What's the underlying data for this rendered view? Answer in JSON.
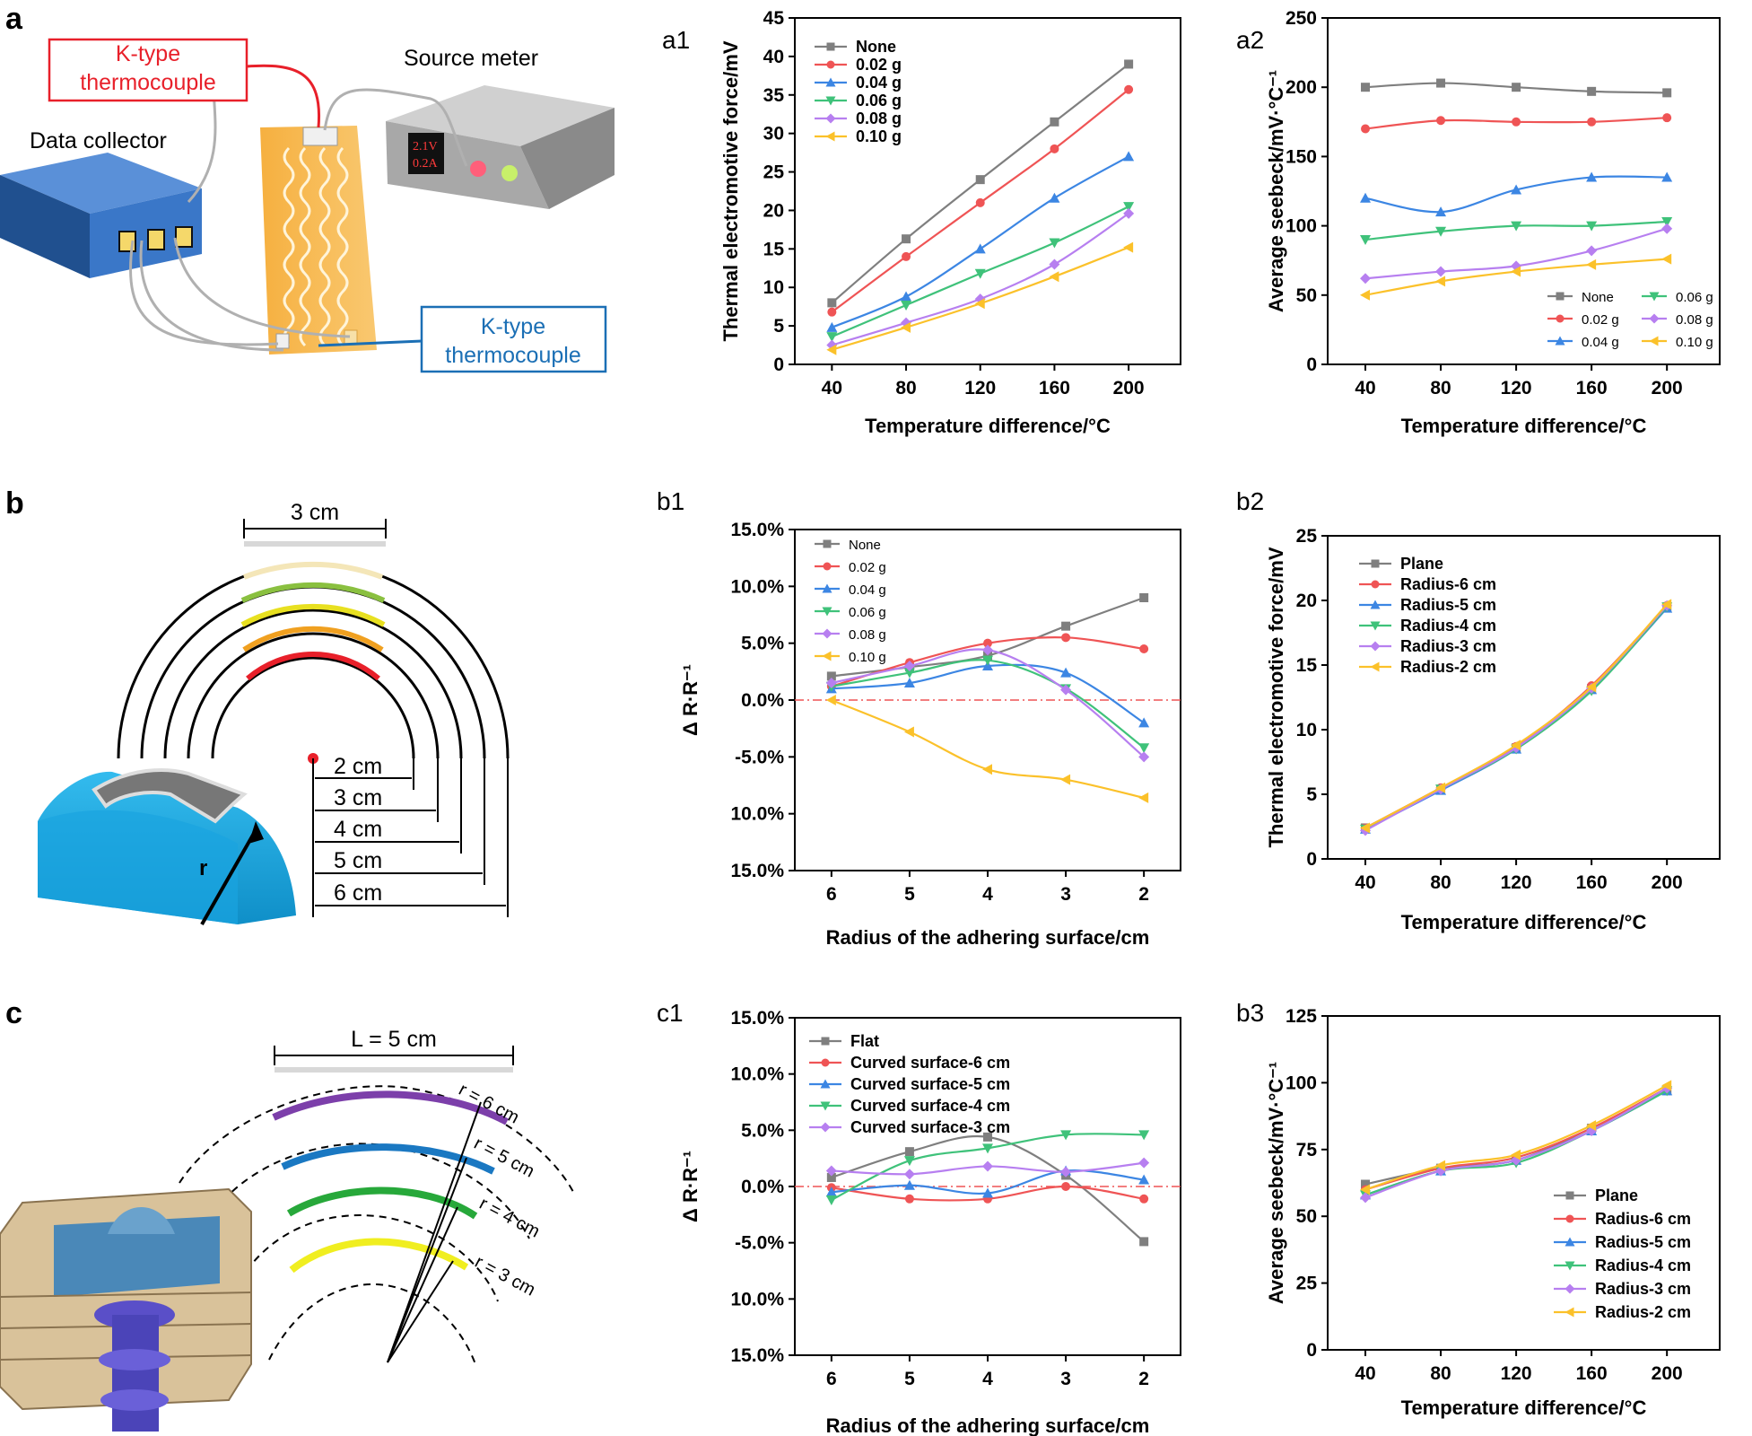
{
  "panel_labels": {
    "a": "a",
    "b": "b",
    "c": "c"
  },
  "schematic_a": {
    "thermocouple_top": [
      "K-type",
      "thermocouple"
    ],
    "source_meter": "Source meter",
    "data_collector": "Data collector",
    "thermocouple_bottom": [
      "K-type",
      "thermocouple"
    ],
    "display_voltage": "2.1V",
    "display_current": "0.2A"
  },
  "schematic_b": {
    "width_label": "3 cm",
    "r_label": "r",
    "radii": [
      "2 cm",
      "3 cm",
      "4 cm",
      "5 cm",
      "6 cm"
    ]
  },
  "schematic_c": {
    "length_label": "L = 5 cm",
    "radii": [
      "r = 6 cm",
      "r = 5 cm",
      "r = 4 cm",
      "r = 3 cm"
    ]
  },
  "colors": {
    "none": "#7f7f7f",
    "g002": "#ef5455",
    "g004": "#3c86e3",
    "g006": "#3fc27a",
    "g008": "#b77ff0",
    "g010": "#fbc12a",
    "refline": "#ef5455"
  },
  "chart_data": [
    {
      "id": "a1",
      "label": "a1",
      "type": "line",
      "xlabel": "Temperature difference/°C",
      "ylabel": "Thermal electromotive force/mV",
      "x": [
        40,
        80,
        120,
        160,
        200
      ],
      "xlim": [
        20,
        228
      ],
      "ylim": [
        0,
        45
      ],
      "yticks": [
        "0",
        "5",
        "10",
        "15",
        "20",
        "25",
        "30",
        "35",
        "40",
        "45"
      ],
      "series": [
        {
          "name": "None",
          "color": "#7f7f7f",
          "marker": "square",
          "values": [
            8.0,
            16.3,
            24.0,
            31.5,
            39.0
          ]
        },
        {
          "name": "0.02 g",
          "color": "#ef5455",
          "marker": "circle",
          "values": [
            6.8,
            14.0,
            21.0,
            28.0,
            35.7
          ]
        },
        {
          "name": "0.04 g",
          "color": "#3c86e3",
          "marker": "triangle-up",
          "values": [
            4.8,
            8.8,
            15.0,
            21.6,
            27.0
          ]
        },
        {
          "name": "0.06 g",
          "color": "#3fc27a",
          "marker": "triangle-down",
          "values": [
            3.6,
            7.7,
            11.8,
            15.8,
            20.5
          ]
        },
        {
          "name": "0.08 g",
          "color": "#b77ff0",
          "marker": "diamond",
          "values": [
            2.5,
            5.4,
            8.5,
            13.0,
            19.6
          ]
        },
        {
          "name": "0.10 g",
          "color": "#fbc12a",
          "marker": "left-triangle",
          "values": [
            1.9,
            4.8,
            7.9,
            11.4,
            15.2
          ]
        }
      ]
    },
    {
      "id": "a2",
      "label": "a2",
      "type": "line",
      "xlabel": "Temperature difference/°C",
      "ylabel": "Average seebeck/mV·°C⁻¹",
      "x": [
        40,
        80,
        120,
        160,
        200
      ],
      "xlim": [
        20,
        228
      ],
      "ylim": [
        0,
        250
      ],
      "yticks": [
        "0",
        "50",
        "100",
        "150",
        "200",
        "250"
      ],
      "series": [
        {
          "name": "None",
          "color": "#7f7f7f",
          "marker": "square",
          "values": [
            200,
            203,
            200,
            197,
            196
          ]
        },
        {
          "name": "0.02 g",
          "color": "#ef5455",
          "marker": "circle",
          "values": [
            170,
            176,
            175,
            175,
            178
          ]
        },
        {
          "name": "0.04 g",
          "color": "#3c86e3",
          "marker": "triangle-up",
          "values": [
            120,
            110,
            126,
            135,
            135
          ]
        },
        {
          "name": "0.06 g",
          "color": "#3fc27a",
          "marker": "triangle-down",
          "values": [
            90,
            96,
            100,
            100,
            103
          ]
        },
        {
          "name": "0.08 g",
          "color": "#b77ff0",
          "marker": "diamond",
          "values": [
            62,
            67,
            71,
            82,
            98
          ]
        },
        {
          "name": "0.10 g",
          "color": "#fbc12a",
          "marker": "left-triangle",
          "values": [
            50,
            60,
            67,
            72,
            76
          ]
        }
      ]
    },
    {
      "id": "b1",
      "label": "b1",
      "type": "line",
      "xlabel": "Radius of the adhering surface/cm",
      "ylabel": "Δ R·R⁻¹",
      "categories": [
        "6",
        "5",
        "4",
        "3",
        "2"
      ],
      "ylim": [
        -15,
        15
      ],
      "yticks": [
        "15.0%",
        "10.0%",
        "5.0%",
        "0.0%",
        "-5.0%",
        "10.0%",
        "15.0%"
      ],
      "series": [
        {
          "name": "None",
          "color": "#7f7f7f",
          "marker": "square",
          "values": [
            2.1,
            2.9,
            3.9,
            6.5,
            9.0
          ]
        },
        {
          "name": "0.02 g",
          "color": "#ef5455",
          "marker": "circle",
          "values": [
            1.2,
            3.3,
            5.0,
            5.5,
            4.5
          ]
        },
        {
          "name": "0.04 g",
          "color": "#3c86e3",
          "marker": "triangle-up",
          "values": [
            1.0,
            1.5,
            3.0,
            2.4,
            -2.0
          ]
        },
        {
          "name": "0.06 g",
          "color": "#3fc27a",
          "marker": "triangle-down",
          "values": [
            1.2,
            2.4,
            3.5,
            1.0,
            -4.2
          ]
        },
        {
          "name": "0.08 g",
          "color": "#b77ff0",
          "marker": "diamond",
          "values": [
            1.5,
            3.0,
            4.4,
            0.9,
            -5.0
          ]
        },
        {
          "name": "0.10 g",
          "color": "#fbc12a",
          "marker": "left-triangle",
          "values": [
            0.0,
            -2.8,
            -6.1,
            -7.0,
            -8.6
          ]
        }
      ]
    },
    {
      "id": "b2",
      "label": "b2",
      "type": "line",
      "xlabel": "Temperature difference/°C",
      "ylabel": "Thermal electromotive force/mV",
      "x": [
        40,
        80,
        120,
        160,
        200
      ],
      "xlim": [
        20,
        228
      ],
      "ylim": [
        0,
        25
      ],
      "yticks": [
        "0",
        "5",
        "10",
        "15",
        "20",
        "25"
      ],
      "series": [
        {
          "name": "Plane",
          "color": "#7f7f7f",
          "marker": "square",
          "values": [
            2.4,
            5.4,
            8.6,
            13.2,
            19.5
          ]
        },
        {
          "name": "Radius-6 cm",
          "color": "#ef5455",
          "marker": "circle",
          "values": [
            2.4,
            5.5,
            8.7,
            13.4,
            19.6
          ]
        },
        {
          "name": "Radius-5 cm",
          "color": "#3c86e3",
          "marker": "triangle-up",
          "values": [
            2.3,
            5.3,
            8.5,
            13.1,
            19.4
          ]
        },
        {
          "name": "Radius-4 cm",
          "color": "#3fc27a",
          "marker": "triangle-down",
          "values": [
            2.3,
            5.4,
            8.5,
            13.0,
            19.5
          ]
        },
        {
          "name": "Radius-3 cm",
          "color": "#b77ff0",
          "marker": "diamond",
          "values": [
            2.2,
            5.4,
            8.6,
            13.2,
            19.6
          ]
        },
        {
          "name": "Radius-2 cm",
          "color": "#fbc12a",
          "marker": "left-triangle",
          "values": [
            2.4,
            5.5,
            8.8,
            13.3,
            19.7
          ]
        }
      ]
    },
    {
      "id": "c1",
      "label": "c1",
      "type": "line",
      "xlabel": "Radius of the adhering surface/cm",
      "ylabel": "Δ R·R⁻¹",
      "categories": [
        "6",
        "5",
        "4",
        "3",
        "2"
      ],
      "ylim": [
        -15,
        15
      ],
      "yticks": [
        "15.0%",
        "10.0%",
        "5.0%",
        "0.0%",
        "-5.0%",
        "10.0%",
        "15.0%"
      ],
      "series": [
        {
          "name": "Flat",
          "color": "#7f7f7f",
          "marker": "square",
          "values": [
            0.8,
            3.1,
            4.4,
            1.0,
            -4.9
          ]
        },
        {
          "name": "Curved surface-6 cm",
          "color": "#ef5455",
          "marker": "circle",
          "values": [
            -0.1,
            -1.1,
            -1.1,
            0.0,
            -1.1
          ]
        },
        {
          "name": "Curved surface-5 cm",
          "color": "#3c86e3",
          "marker": "triangle-up",
          "values": [
            -0.5,
            0.1,
            -0.6,
            1.4,
            0.6
          ]
        },
        {
          "name": "Curved surface-4 cm",
          "color": "#3fc27a",
          "marker": "triangle-down",
          "values": [
            -1.2,
            2.3,
            3.4,
            4.6,
            4.6
          ]
        },
        {
          "name": "Curved surface-3 cm",
          "color": "#b77ff0",
          "marker": "diamond",
          "values": [
            1.4,
            1.1,
            1.8,
            1.3,
            2.1
          ]
        }
      ]
    },
    {
      "id": "b3",
      "label": "b3",
      "type": "line",
      "xlabel": "Temperature difference/°C",
      "ylabel": "Average seebeck/mV·°C⁻¹",
      "x": [
        40,
        80,
        120,
        160,
        200
      ],
      "xlim": [
        20,
        228
      ],
      "ylim": [
        0,
        125
      ],
      "yticks": [
        "0",
        "25",
        "50",
        "75",
        "100",
        "125"
      ],
      "series": [
        {
          "name": "Plane",
          "color": "#7f7f7f",
          "marker": "square",
          "values": [
            62,
            68,
            71,
            83,
            97
          ]
        },
        {
          "name": "Radius-6 cm",
          "color": "#ef5455",
          "marker": "circle",
          "values": [
            60,
            68,
            72,
            83,
            98
          ]
        },
        {
          "name": "Radius-5 cm",
          "color": "#3c86e3",
          "marker": "triangle-up",
          "values": [
            58,
            67,
            71,
            82,
            97
          ]
        },
        {
          "name": "Radius-4 cm",
          "color": "#3fc27a",
          "marker": "triangle-down",
          "values": [
            58,
            67,
            70,
            82,
            97
          ]
        },
        {
          "name": "Radius-3 cm",
          "color": "#b77ff0",
          "marker": "diamond",
          "values": [
            57,
            67,
            71,
            82,
            98
          ]
        },
        {
          "name": "Radius-2 cm",
          "color": "#fbc12a",
          "marker": "left-triangle",
          "values": [
            60,
            69,
            73,
            84,
            99
          ]
        }
      ]
    }
  ]
}
